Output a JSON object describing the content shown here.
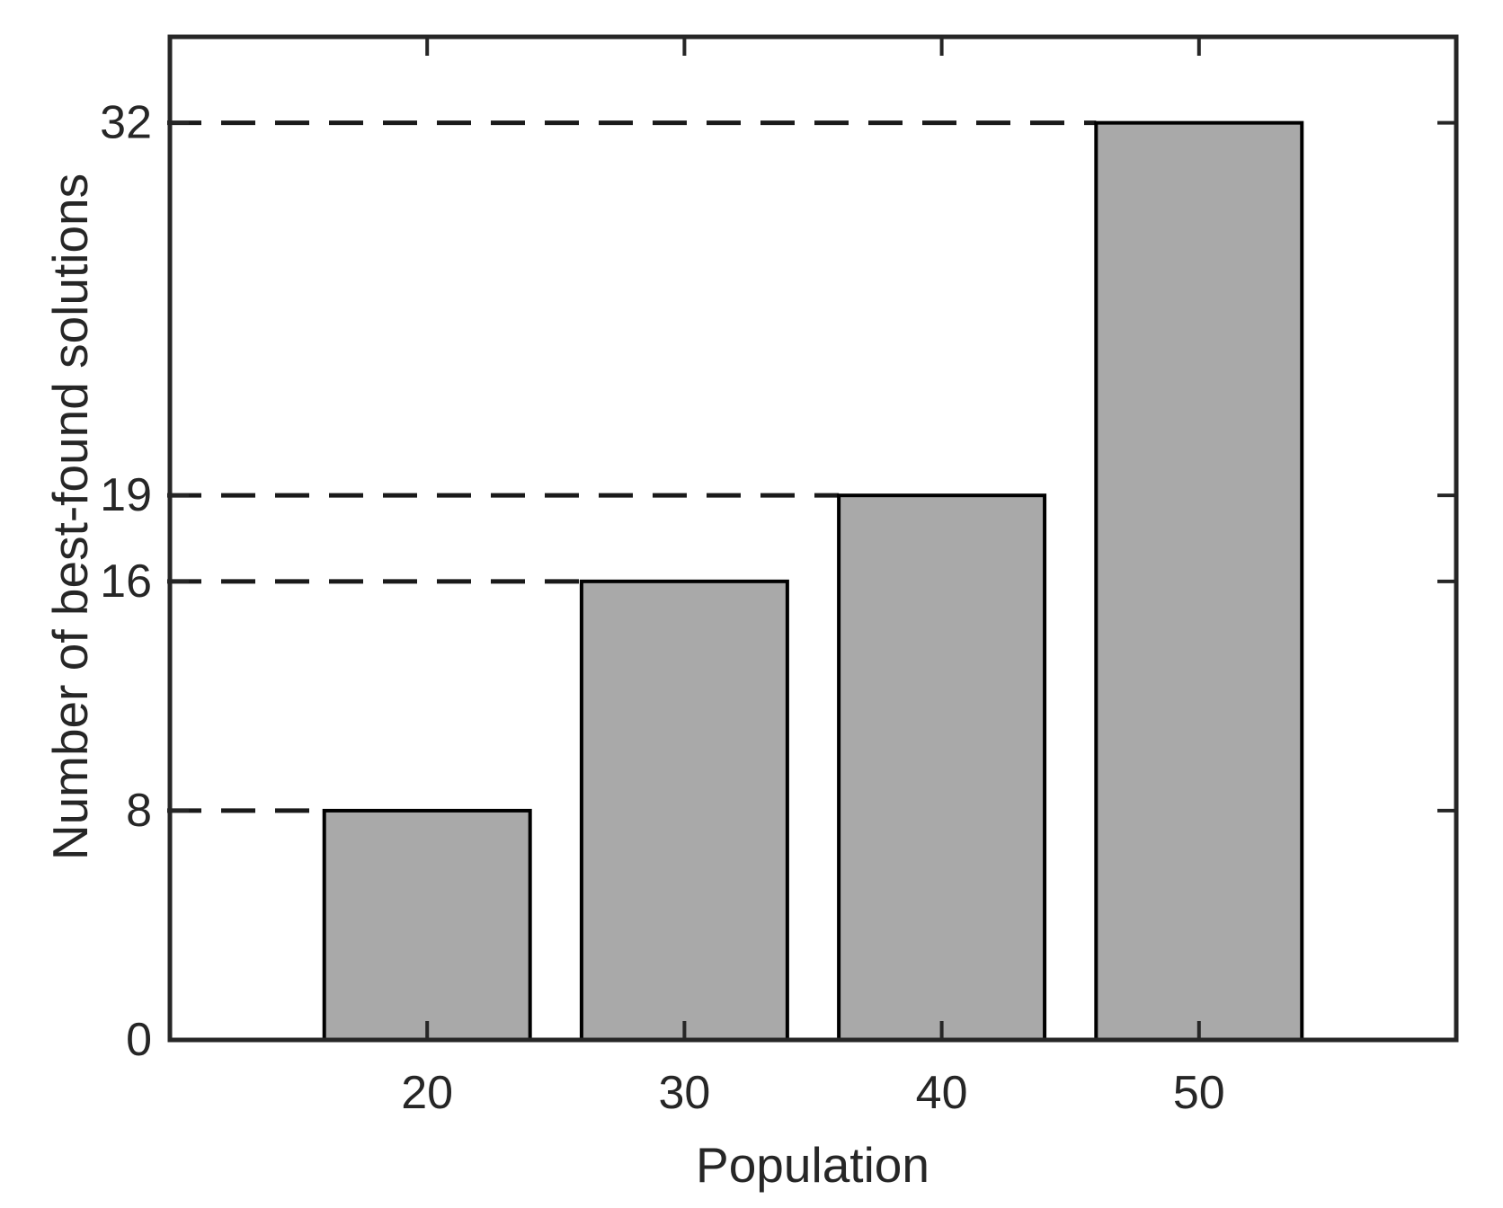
{
  "chart_data": {
    "type": "bar",
    "title": "",
    "xlabel": "Population",
    "ylabel": "Number of best-found solutions",
    "categories": [
      "20",
      "30",
      "40",
      "50"
    ],
    "values": [
      8,
      16,
      19,
      32
    ],
    "yticks": [
      0,
      8,
      16,
      19,
      32
    ],
    "ytick_labels": [
      "0",
      "8",
      "16",
      "19",
      "32"
    ],
    "ylim": [
      0,
      35
    ],
    "bar_width_fraction": 0.8,
    "bar_color": "#a9a9a9",
    "bar_edge_color": "#000000",
    "axis_color": "#262626",
    "guide_lines": {
      "style": "dashed",
      "color": "#1a1a1a",
      "at_values": [
        8,
        16,
        19,
        32
      ],
      "description": "horizontal dashed line from the y-axis to the left edge of each bar at that bar's height"
    },
    "legend": null,
    "grid": false
  }
}
